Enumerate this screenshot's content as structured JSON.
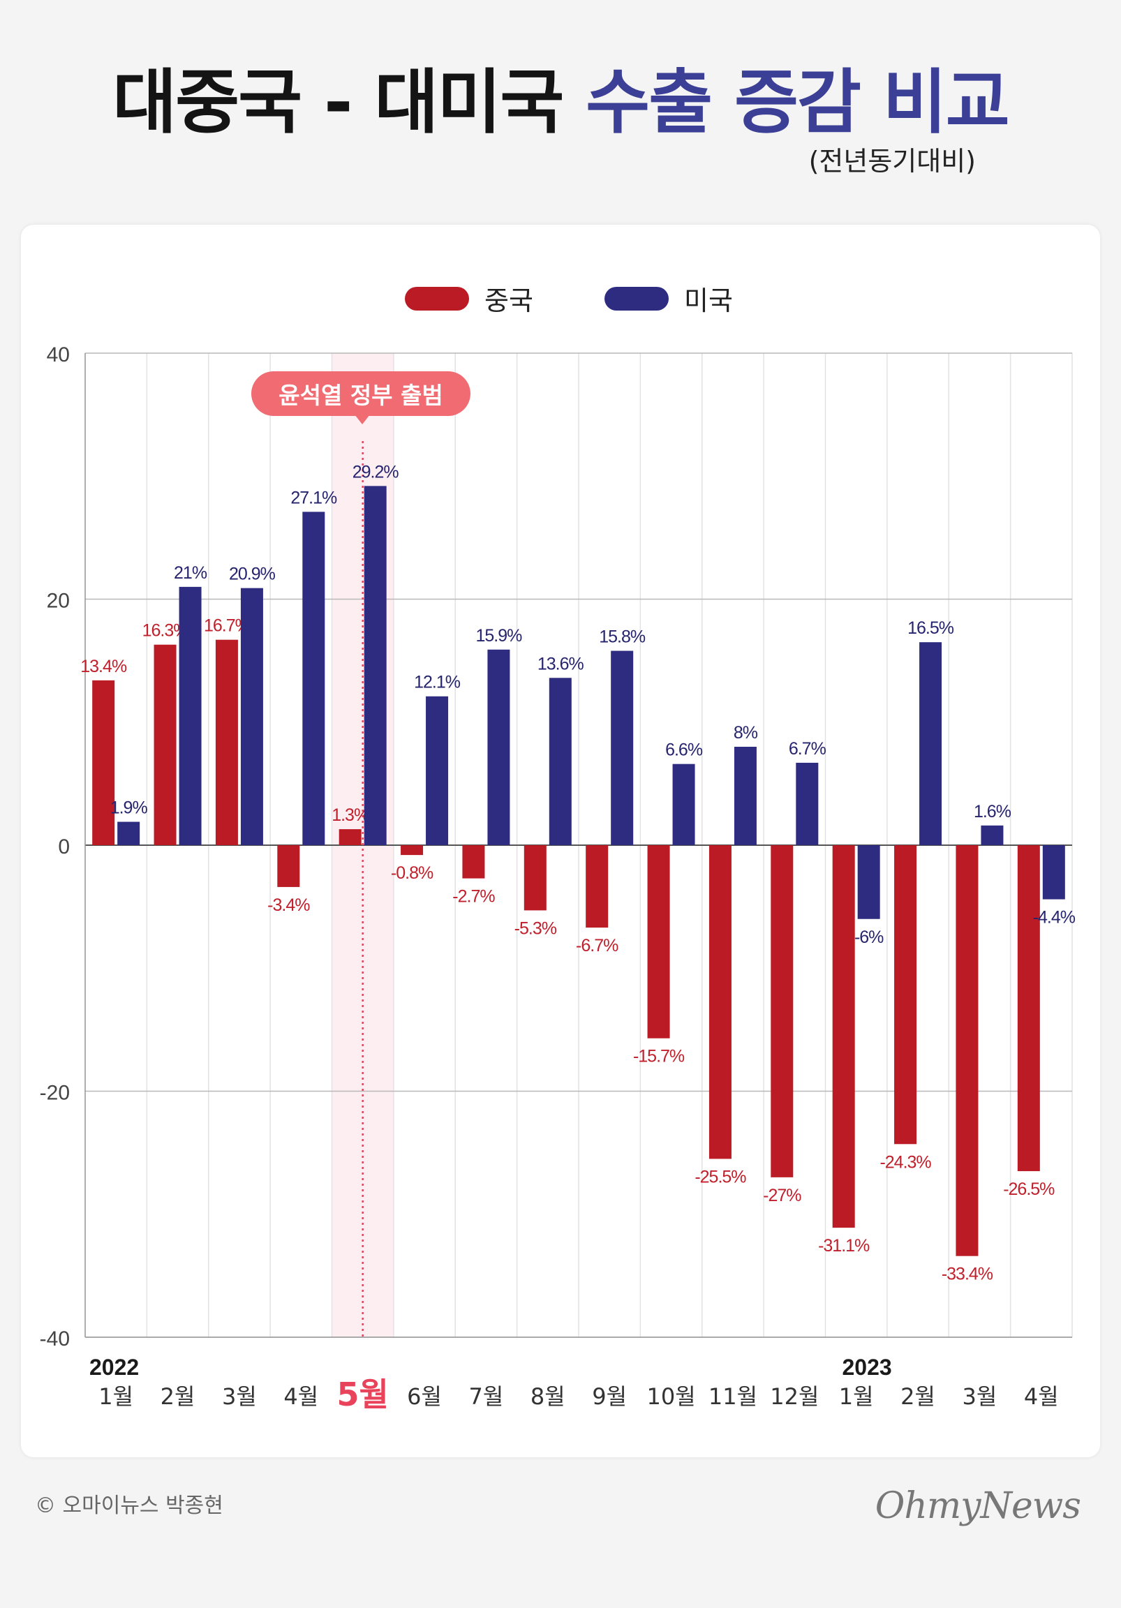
{
  "header": {
    "title_black": "대중국 - 대미국",
    "title_accent": "수출 증감 비교",
    "subtitle": "(전년동기대비)"
  },
  "annotation": {
    "label": "윤석열 정부 출범"
  },
  "footer": {
    "credit": "© 오마이뉴스 박종현",
    "brand": "OhmyNews"
  },
  "colors": {
    "china": "#bb1b24",
    "usa": "#2e2c80",
    "china_label": "#c0202b",
    "usa_label": "#26246e",
    "highlight": "#e8435a"
  },
  "chart_data": {
    "type": "bar",
    "title": "대중국 - 대미국 수출 증감 비교",
    "subtitle": "(전년동기대비)",
    "ylim": [
      -40,
      40
    ],
    "yticks": [
      "40",
      "20",
      "0",
      "-20",
      "-40"
    ],
    "year_labels": [
      {
        "index": 0,
        "text": "2022"
      },
      {
        "index": 12,
        "text": "2023"
      }
    ],
    "highlight_index": 4,
    "categories": [
      "1월",
      "2월",
      "3월",
      "4월",
      "5월",
      "6월",
      "7월",
      "8월",
      "9월",
      "10월",
      "11월",
      "12월",
      "1월",
      "2월",
      "3월",
      "4월"
    ],
    "series": [
      {
        "name": "중국",
        "values": [
          13.4,
          16.3,
          16.7,
          -3.4,
          1.3,
          -0.8,
          -2.7,
          -5.3,
          -6.7,
          -15.7,
          -25.5,
          -27,
          -31.1,
          -24.3,
          -33.4,
          -26.5
        ],
        "labels": [
          "13.4%",
          "16.3%",
          "16.7%",
          "-3.4%",
          "1.3%",
          "-0.8%",
          "-2.7%",
          "-5.3%",
          "-6.7%",
          "-15.7%",
          "-25.5%",
          "-27%",
          "-31.1%",
          "-24.3%",
          "-33.4%",
          "-26.5%"
        ]
      },
      {
        "name": "미국",
        "values": [
          1.9,
          21,
          20.9,
          27.1,
          29.2,
          12.1,
          15.9,
          13.6,
          15.8,
          6.6,
          8,
          6.7,
          -6,
          16.5,
          1.6,
          -4.4
        ],
        "labels": [
          "1.9%",
          "21%",
          "20.9%",
          "27.1%",
          "29.2%",
          "12.1%",
          "15.9%",
          "13.6%",
          "15.8%",
          "6.6%",
          "8%",
          "6.7%",
          "-6%",
          "16.5%",
          "1.6%",
          "-4.4%"
        ]
      }
    ]
  }
}
